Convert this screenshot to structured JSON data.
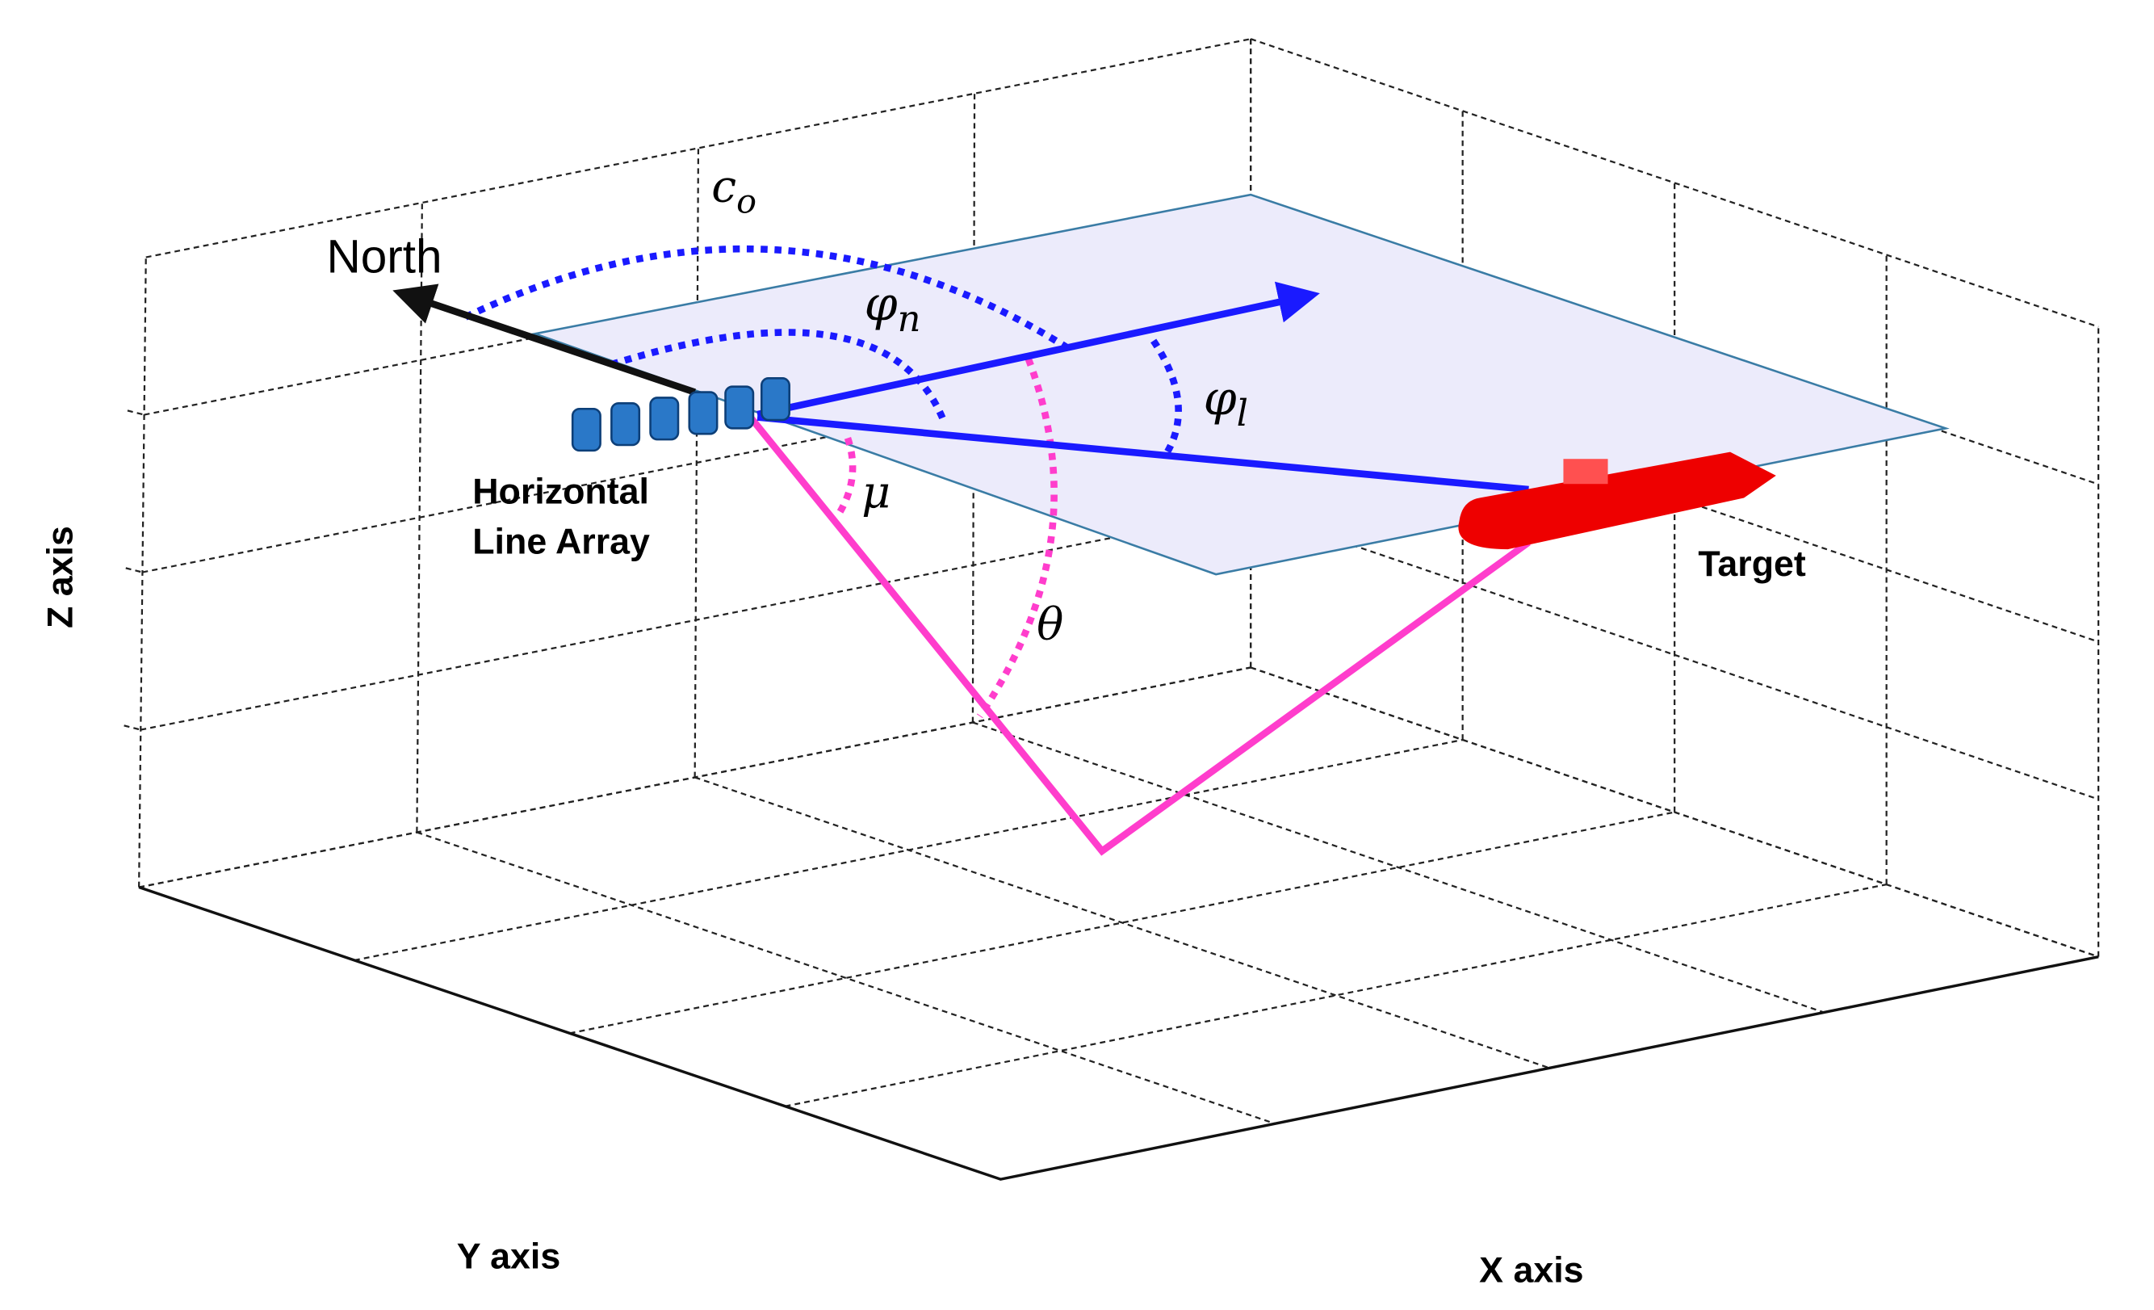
{
  "labels": {
    "north": "North",
    "c": {
      "symbol": "c",
      "subscript": "o"
    },
    "phi_n": {
      "symbol": "φ",
      "subscript": "n"
    },
    "phi_l": {
      "symbol": "φ",
      "subscript": "l"
    },
    "mu": "μ",
    "theta": "θ",
    "array": [
      "Horizontal",
      "Line Array"
    ],
    "target": "Target"
  },
  "axes": {
    "z": "Z axis",
    "y": "Y axis",
    "x": "X axis"
  }
}
